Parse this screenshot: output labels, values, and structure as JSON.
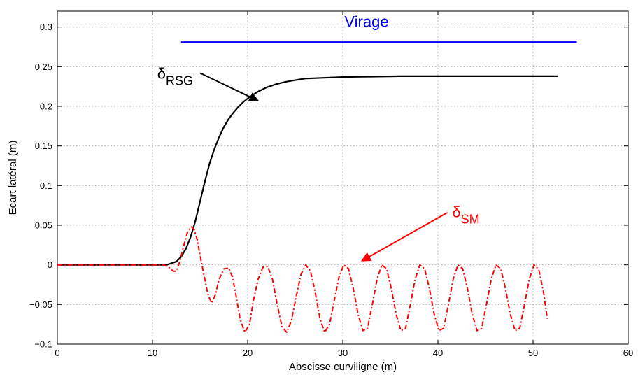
{
  "chart_data": {
    "type": "line",
    "xlabel": "Abscisse curviligne (m)",
    "ylabel": "Ecart latéral (m)",
    "xlim": [
      0,
      60
    ],
    "ylim": [
      -0.1,
      0.32
    ],
    "xticks": [
      0,
      10,
      20,
      30,
      40,
      50,
      60
    ],
    "xtick_labels": [
      "0",
      "10",
      "20",
      "30",
      "40",
      "50",
      "60"
    ],
    "yticks": [
      -0.1,
      -0.05,
      0,
      0.05,
      0.1,
      0.15,
      0.2,
      0.25,
      0.3
    ],
    "ytick_labels": [
      "−0.1",
      "−0.05",
      "0",
      "0.05",
      "0.1",
      "0.15",
      "0.2",
      "0.25",
      "0.3"
    ],
    "grid": true,
    "series": [
      {
        "name": "Virage",
        "color": "#0000ff",
        "style": "solid",
        "x": [
          13,
          54.6
        ],
        "y": [
          0.281,
          0.281
        ]
      },
      {
        "name": "δRSG",
        "color": "#000000",
        "style": "solid",
        "x": [
          0,
          11.5,
          12.5,
          13.0,
          13.5,
          14.0,
          14.5,
          15.0,
          15.5,
          16.0,
          16.5,
          17.0,
          17.5,
          18.0,
          18.5,
          19.0,
          19.5,
          20.0,
          20.5,
          21.0,
          22.0,
          23.0,
          24.0,
          25.0,
          26.0,
          28.0,
          30.0,
          33.0,
          36.0,
          40.0,
          45.0,
          52.6
        ],
        "y": [
          0,
          0,
          0.004,
          0.01,
          0.02,
          0.035,
          0.055,
          0.08,
          0.105,
          0.128,
          0.146,
          0.161,
          0.174,
          0.184,
          0.192,
          0.199,
          0.205,
          0.21,
          0.214,
          0.218,
          0.224,
          0.228,
          0.231,
          0.233,
          0.235,
          0.236,
          0.237,
          0.2375,
          0.238,
          0.238,
          0.238,
          0.238
        ]
      },
      {
        "name": "δSM",
        "color": "#ff0000",
        "style": "dashdot",
        "x": [
          0,
          11.2,
          11.7,
          12.2,
          12.5,
          12.9,
          13.3,
          13.7,
          14.1,
          14.4,
          14.7,
          15.0,
          15.4,
          15.8,
          16.2,
          16.6,
          17.0,
          17.5,
          18.0,
          18.4,
          18.8,
          19.2,
          19.7,
          20.2,
          20.6,
          21.1,
          21.6,
          22.1,
          22.6,
          23.1,
          23.6,
          24.1,
          24.6,
          25.1,
          25.6,
          26.1,
          26.6,
          27.1,
          27.6,
          28.1,
          28.6,
          29.1,
          29.6,
          30.1,
          30.6,
          31.1,
          31.6,
          32.1,
          32.6,
          33.1,
          33.6,
          34.1,
          34.6,
          35.1,
          35.6,
          36.1,
          36.6,
          37.1,
          37.6,
          38.1,
          38.6,
          39.1,
          39.6,
          40.1,
          40.6,
          41.1,
          41.6,
          42.1,
          42.6,
          43.1,
          43.6,
          44.1,
          44.6,
          45.1,
          45.6,
          46.1,
          46.6,
          47.1,
          47.6,
          48.1,
          48.6,
          49.1,
          49.6,
          50.1,
          50.6,
          51.1,
          51.5
        ],
        "y": [
          0,
          0,
          -0.003,
          -0.008,
          -0.008,
          0.005,
          0.025,
          0.042,
          0.048,
          0.044,
          0.032,
          0.012,
          -0.012,
          -0.036,
          -0.048,
          -0.038,
          -0.018,
          -0.005,
          -0.004,
          -0.015,
          -0.04,
          -0.068,
          -0.085,
          -0.075,
          -0.045,
          -0.018,
          -0.003,
          -0.002,
          -0.018,
          -0.05,
          -0.078,
          -0.085,
          -0.07,
          -0.04,
          -0.012,
          0.0,
          -0.008,
          -0.035,
          -0.068,
          -0.085,
          -0.075,
          -0.045,
          -0.015,
          0.0,
          -0.005,
          -0.03,
          -0.062,
          -0.083,
          -0.08,
          -0.05,
          -0.018,
          0.0,
          -0.005,
          -0.03,
          -0.062,
          -0.083,
          -0.08,
          -0.05,
          -0.018,
          0.0,
          -0.005,
          -0.03,
          -0.062,
          -0.083,
          -0.08,
          -0.05,
          -0.018,
          0.0,
          -0.005,
          -0.03,
          -0.062,
          -0.083,
          -0.08,
          -0.05,
          -0.018,
          0.0,
          -0.005,
          -0.03,
          -0.062,
          -0.083,
          -0.08,
          -0.05,
          -0.018,
          0.0,
          -0.006,
          -0.035,
          -0.068
        ]
      }
    ],
    "annotations": [
      {
        "name": "virage",
        "text": "Virage",
        "sub": "",
        "color": "#0000ff",
        "at": [
          32.5,
          0.3
        ]
      },
      {
        "name": "rsg",
        "text": "δ",
        "sub": "RSG",
        "color": "#000000",
        "at": [
          10.5,
          0.235
        ],
        "arrow_from": [
          15.0,
          0.242
        ],
        "arrow_to": [
          21.1,
          0.207
        ]
      },
      {
        "name": "sm",
        "text": "δ",
        "sub": "SM",
        "color": "#ff0000",
        "at": [
          41.5,
          0.06
        ],
        "arrow_from": [
          41.0,
          0.066
        ],
        "arrow_to": [
          32.0,
          0.005
        ]
      }
    ]
  }
}
